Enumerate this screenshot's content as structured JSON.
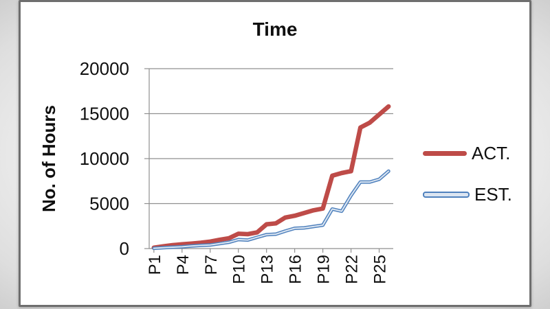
{
  "chart_data": {
    "type": "line",
    "title": "Time",
    "ylabel": "No. of Hours",
    "ylim": [
      0,
      20000
    ],
    "yticks": [
      0,
      5000,
      10000,
      15000,
      20000
    ],
    "categories": [
      "P1",
      "P2",
      "P3",
      "P4",
      "P5",
      "P6",
      "P7",
      "P8",
      "P9",
      "P10",
      "P11",
      "P12",
      "P13",
      "P14",
      "P15",
      "P16",
      "P17",
      "P18",
      "P19",
      "P20",
      "P21",
      "P22",
      "P23",
      "P24",
      "P25",
      "P26"
    ],
    "xtick_labels": [
      "P1",
      "P4",
      "P7",
      "P10",
      "P13",
      "P16",
      "P19",
      "P22",
      "P25"
    ],
    "grid": true,
    "legend_position": "right",
    "colors": {
      "axis": "#8f8f8f",
      "grid": "#8f8f8f",
      "text": "#0f0f0f"
    },
    "series": [
      {
        "name": "ACT.",
        "color": "#be4b48",
        "values": [
          100,
          250,
          380,
          480,
          560,
          650,
          780,
          980,
          1150,
          1650,
          1600,
          1800,
          2700,
          2800,
          3450,
          3650,
          3950,
          4250,
          4450,
          8100,
          8400,
          8600,
          13450,
          14000,
          14900,
          15800
        ]
      },
      {
        "name": "EST.",
        "color": "#4f81bd",
        "inner_color": "#dce6f2",
        "values": [
          30,
          100,
          150,
          200,
          280,
          350,
          400,
          550,
          700,
          1000,
          950,
          1250,
          1550,
          1600,
          1950,
          2250,
          2300,
          2450,
          2600,
          4400,
          4150,
          5900,
          7400,
          7400,
          7700,
          8600
        ]
      }
    ]
  }
}
